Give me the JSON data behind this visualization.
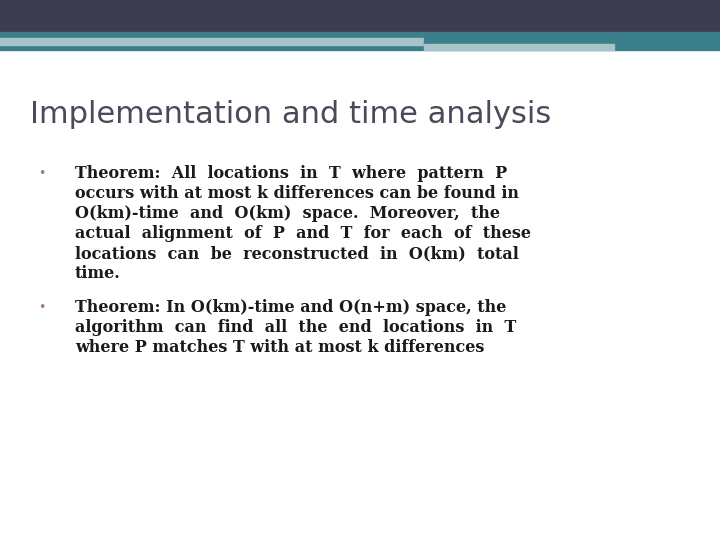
{
  "title": "Implementation and time analysis",
  "title_color": "#4a4a5a",
  "title_fontsize": 22,
  "background_color": "#ffffff",
  "header_bar_color": "#3d3d50",
  "teal_bar_color": "#3a7f8a",
  "accent_light_color": "#a8c4c8",
  "bullet_color": "#a070a0",
  "text_color": "#1a1a1a",
  "body_fontsize": 11.5,
  "bullet_fontsize": 9,
  "bullet1_line1": "Theorem:  All  locations  in  T  where  pattern  P",
  "bullet1_line2": "occurs with at most k differences can be found in",
  "bullet1_line3": "O(km)-time  and  O(km)  space.  Moreover,  the",
  "bullet1_line4": "actual  alignment  of  P  and  T  for  each  of  these",
  "bullet1_line5": "locations  can  be  reconstructed  in  O(km)  total",
  "bullet1_line6": "time.",
  "bullet2_line1": "Theorem: In O(km)-time and O(n+m) space, the",
  "bullet2_line2": "algorithm  can  find  all  the  end  locations  in  T",
  "bullet2_line3": "where P matches T with at most k differences"
}
